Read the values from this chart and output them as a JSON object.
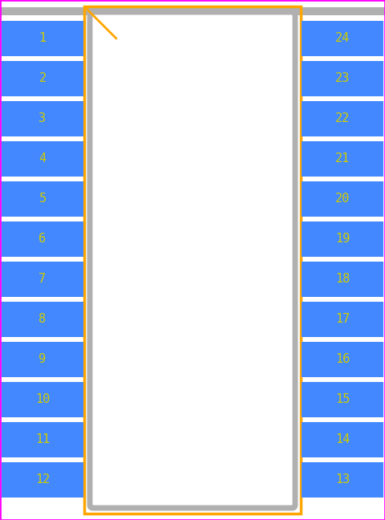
{
  "background": "#ffffff",
  "border_color": "#ff00ff",
  "pad_color": "#4488ff",
  "pad_text_color": "#cccc00",
  "body_fill": "#ffffff",
  "body_stroke": "#b0b0b0",
  "silk_color": "#ffa500",
  "num_pins_per_side": 12,
  "left_pins": [
    1,
    2,
    3,
    4,
    5,
    6,
    7,
    8,
    9,
    10,
    11,
    12
  ],
  "right_pins": [
    24,
    23,
    22,
    21,
    20,
    19,
    18,
    17,
    16,
    15,
    14,
    13
  ],
  "fig_width": 4.8,
  "fig_height": 6.48,
  "dpi": 100
}
